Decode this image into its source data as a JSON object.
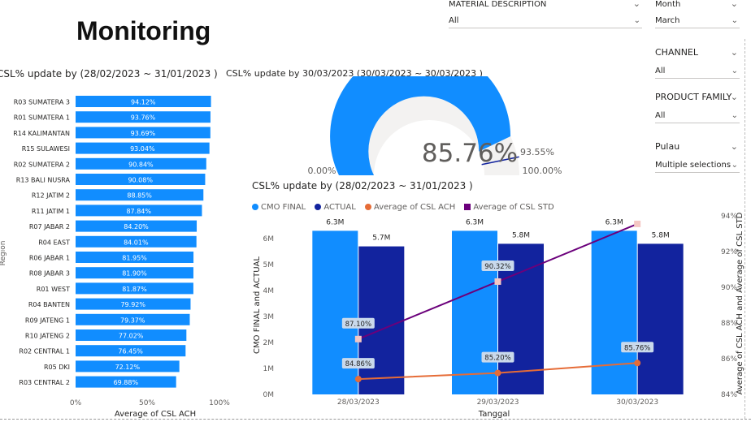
{
  "page_title": "Monitoring",
  "slicers": {
    "material": {
      "label": "MATERIAL DESCRIPTION",
      "value": "All"
    },
    "month": {
      "label": "Month",
      "value": "March"
    },
    "channel": {
      "label": "CHANNEL",
      "value": "All"
    },
    "product_family": {
      "label": "PRODUCT FAMILY",
      "value": "All"
    },
    "pulau": {
      "label": "Pulau",
      "value": "Multiple selections"
    }
  },
  "bar_chart": {
    "title": "CSL% update by (28/02/2023 ~ 31/01/2023 )",
    "ylabel": "Region",
    "xlabel": "Average of CSL ACH",
    "ticks": [
      "0%",
      "50%",
      "100%"
    ],
    "color": "#118dff"
  },
  "gauge": {
    "title": "CSL% update by 30/03/2023 (30/03/2023 ~ 30/03/2023 )",
    "value_label": "85.76%",
    "min_label": "0.00%",
    "max_label": "100.00%",
    "target_label": "93.55%",
    "fill_color": "#118dff",
    "track_color": "#f3f2f1"
  },
  "combo_chart": {
    "title": "CSL% update by (28/02/2023 ~ 31/01/2023 )",
    "legend": [
      {
        "name": "CMO FINAL",
        "color": "#118dff"
      },
      {
        "name": "ACTUAL",
        "color": "#12239e"
      },
      {
        "name": "Average of  CSL ACH",
        "color": "#e66c37"
      },
      {
        "name": "Average of  CSL STD",
        "color": "#6b007b"
      }
    ],
    "y_left_label": "CMO FINAL and ACTUAL",
    "y_right_label": "Average of CSL ACH and Average of CSL STD",
    "x_label": "Tanggal",
    "left_ticks": [
      "0M",
      "1M",
      "2M",
      "3M",
      "4M",
      "5M",
      "6M"
    ],
    "right_ticks": [
      "84%",
      "86%",
      "88%",
      "90%",
      "92%",
      "94%"
    ]
  },
  "chart_data": [
    {
      "type": "bar",
      "orientation": "horizontal",
      "title": "CSL% update by (28/02/2023 ~ 31/01/2023 )",
      "xlabel": "Average of CSL ACH",
      "ylabel": "Region",
      "xlim": [
        0,
        100
      ],
      "categories": [
        "R03 SUMATERA 3",
        "R01 SUMATERA 1",
        "R14 KALIMANTAN",
        "R15 SULAWESI",
        "R02 SUMATERA 2",
        "R13 BALI NUSRA",
        "R12 JATIM 2",
        "R11 JATIM 1",
        "R07 JABAR 2",
        "R04 EAST",
        "R06 JABAR 1",
        "R08 JABAR 3",
        "R01 WEST",
        "R04 BANTEN",
        "R09 JATENG 1",
        "R10 JATENG 2",
        "R02 CENTRAL 1",
        "R05 DKI",
        "R03 CENTRAL 2"
      ],
      "values": [
        94.12,
        93.76,
        93.69,
        93.04,
        90.84,
        90.08,
        88.85,
        87.84,
        84.2,
        84.01,
        81.95,
        81.9,
        81.87,
        79.92,
        79.37,
        77.02,
        76.45,
        72.12,
        69.88
      ],
      "labels": [
        "94.12%",
        "93.76%",
        "93.69%",
        "93.04%",
        "90.84%",
        "90.08%",
        "88.85%",
        "87.84%",
        "84.20%",
        "84.01%",
        "81.95%",
        "81.90%",
        "81.87%",
        "79.92%",
        "79.37%",
        "77.02%",
        "76.45%",
        "72.12%",
        "69.88%"
      ]
    },
    {
      "type": "gauge",
      "title": "CSL% update by 30/03/2023 (30/03/2023 ~ 30/03/2023 )",
      "value": 85.76,
      "min": 0,
      "max": 100,
      "target": 93.55
    },
    {
      "type": "bar",
      "title": "CSL% update by (28/02/2023 ~ 31/01/2023 )",
      "categories": [
        "28/03/2023",
        "29/03/2023",
        "30/03/2023"
      ],
      "xlabel": "Tanggal",
      "ylabel": "CMO FINAL and ACTUAL",
      "ylim": [
        0,
        6500000
      ],
      "y2label": "Average of CSL ACH and Average of CSL STD",
      "y2lim": [
        84,
        94
      ],
      "series": [
        {
          "name": "CMO FINAL",
          "type": "bar",
          "axis": "left",
          "values": [
            6300000,
            6300000,
            6300000
          ],
          "labels": [
            "6.3M",
            "6.3M",
            "6.3M"
          ]
        },
        {
          "name": "ACTUAL",
          "type": "bar",
          "axis": "left",
          "values": [
            5700000,
            5800000,
            5800000
          ],
          "labels": [
            "5.7M",
            "5.8M",
            "5.8M"
          ]
        },
        {
          "name": "Average of  CSL ACH",
          "type": "line",
          "axis": "right",
          "values": [
            84.86,
            85.2,
            85.76
          ],
          "labels": [
            "84.86%",
            "85.20%",
            "85.76%"
          ]
        },
        {
          "name": "Average of  CSL STD",
          "type": "line",
          "axis": "right",
          "values": [
            87.1,
            90.32,
            93.55
          ],
          "labels": [
            "87.10%",
            "90.32%",
            ""
          ]
        }
      ]
    }
  ]
}
